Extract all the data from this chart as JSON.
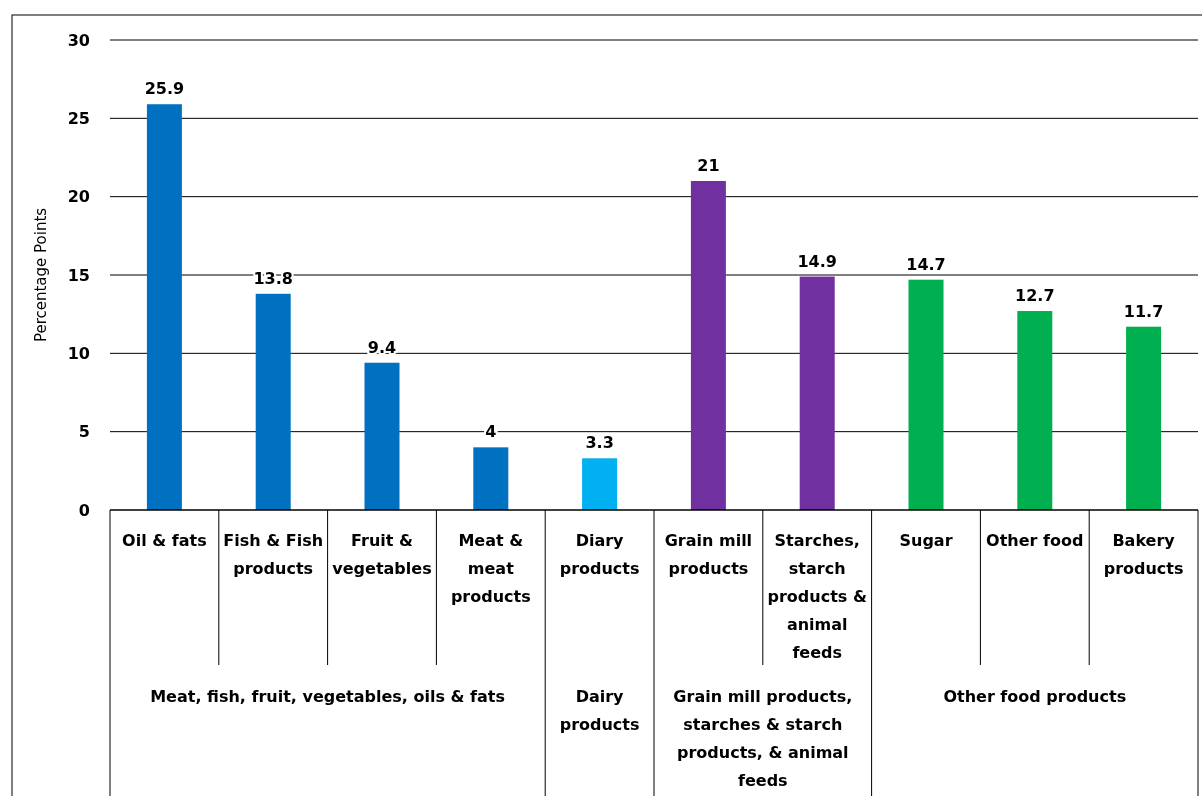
{
  "chart_data": {
    "type": "bar",
    "ylabel": "Percentage Points",
    "categories": [
      "Oil & fats",
      "Fish & Fish products",
      "Fruit & vegetables",
      "Meat & meat products",
      "Diary products",
      "Grain mill products",
      "Starches, starch products & animal feeds",
      "Sugar",
      "Other food",
      "Bakery products"
    ],
    "values": [
      25.9,
      13.8,
      9.4,
      4,
      3.3,
      21,
      14.9,
      14.7,
      12.7,
      11.7
    ],
    "colors": [
      "#0070c0",
      "#0070c0",
      "#0070c0",
      "#0070c0",
      "#00b0f0",
      "#7030a0",
      "#7030a0",
      "#00b050",
      "#00b050",
      "#00b050"
    ],
    "ylim": [
      0,
      30
    ],
    "yticks": [
      0,
      5,
      10,
      15,
      20,
      25,
      30
    ],
    "grid": "y",
    "data_labels": true,
    "annotations": [
      "Meat, fish, fruit, vegetables, oils & fats",
      "Dairy products",
      "Grain mill products, starches & starch products, & animal feeds",
      "Other food products"
    ]
  }
}
